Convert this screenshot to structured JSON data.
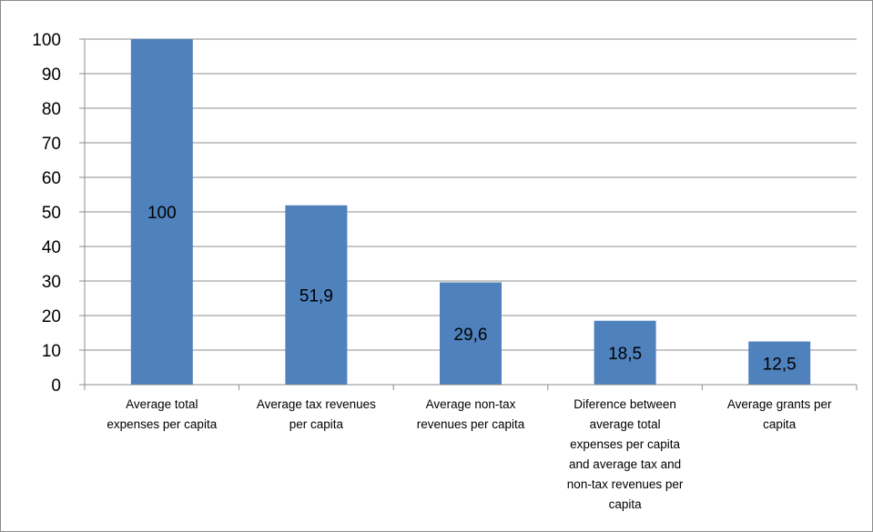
{
  "chart_data": {
    "type": "bar",
    "title": "",
    "xlabel": "",
    "ylabel": "",
    "ylim": [
      0,
      100
    ],
    "ytick_step": 10,
    "grid": true,
    "legend": "none",
    "bar_color": "#4f81bd",
    "gridline_color": "#8c8c8c",
    "categories": [
      "Average total expenses per capita",
      "Average tax revenues per capita",
      "Average non-tax revenues per capita",
      "Diference between average total expenses per capita and average tax and non-tax revenues per capita",
      "Average grants per capita"
    ],
    "category_lines": [
      [
        "Average total",
        "expenses per capita"
      ],
      [
        "Average tax revenues",
        "per capita"
      ],
      [
        "Average non-tax",
        "revenues per capita"
      ],
      [
        "Diference between",
        "average total",
        "expenses per capita",
        "and average tax and",
        "non-tax revenues per",
        "capita"
      ],
      [
        "Average grants per",
        "capita"
      ]
    ],
    "values": [
      100,
      51.9,
      29.6,
      18.5,
      12.5
    ],
    "data_labels": [
      "100",
      "51,9",
      "29,6",
      "18,5",
      "12,5"
    ]
  }
}
